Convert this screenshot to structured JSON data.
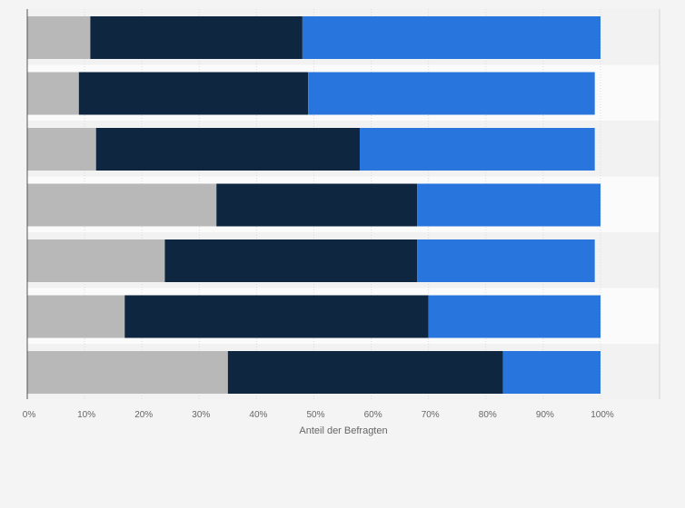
{
  "chart_data": {
    "type": "bar",
    "orientation": "horizontal",
    "stacked": true,
    "categories": [
      "",
      "",
      "",
      "",
      "",
      "",
      ""
    ],
    "series": [
      {
        "color": "#b8b8b8",
        "values": [
          11,
          9,
          12,
          33,
          24,
          17,
          35
        ]
      },
      {
        "color": "#0f2640",
        "values": [
          37,
          40,
          46,
          35,
          44,
          53,
          48
        ]
      },
      {
        "color": "#2876dd",
        "values": [
          52,
          50,
          41,
          32,
          31,
          30,
          17
        ]
      }
    ],
    "xlabel": "Anteil der Befragten",
    "xlim": [
      0,
      100
    ],
    "xticks": [
      "0%",
      "10%",
      "20%",
      "30%",
      "40%",
      "50%",
      "60%",
      "70%",
      "80%",
      "90%",
      "100%"
    ],
    "grid": true,
    "legend": "none"
  }
}
